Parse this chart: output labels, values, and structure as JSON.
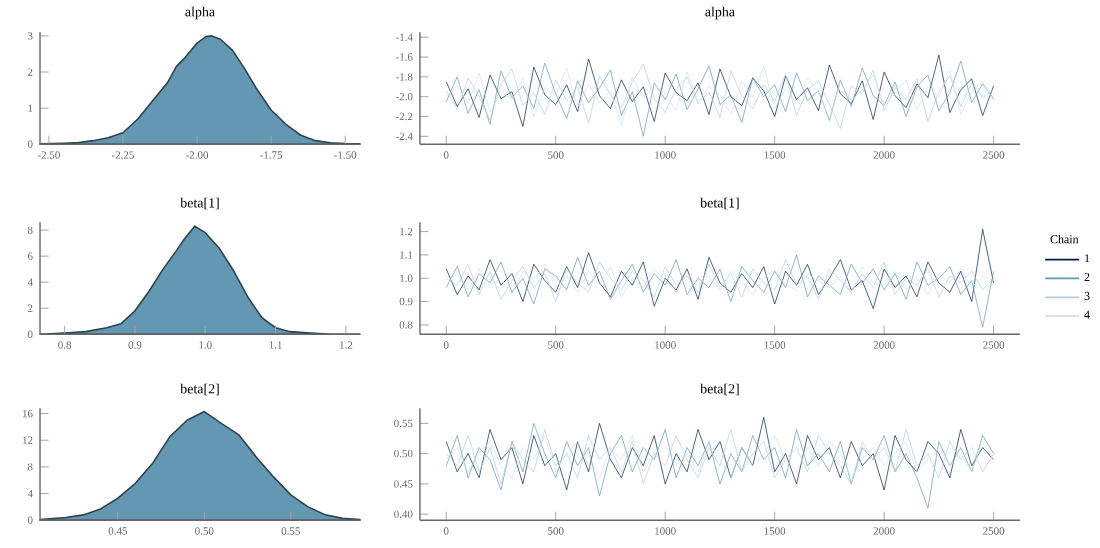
{
  "chart_data": [
    {
      "type": "area",
      "title": "alpha",
      "xlim": [
        -2.53,
        -1.45
      ],
      "ylim": [
        0,
        3.1
      ],
      "xticks": [
        {
          "value": -2.5,
          "label": "-2.50"
        },
        {
          "value": -2.25,
          "label": "-2.25"
        },
        {
          "value": -2.0,
          "label": "-2.00"
        },
        {
          "value": -1.75,
          "label": "-1.75"
        },
        {
          "value": -1.5,
          "label": "-1.50"
        }
      ],
      "yticks": [
        0,
        1,
        2,
        3
      ],
      "x": [
        -2.53,
        -2.45,
        -2.4,
        -2.35,
        -2.3,
        -2.25,
        -2.2,
        -2.15,
        -2.1,
        -2.07,
        -2.04,
        -2.0,
        -1.97,
        -1.95,
        -1.92,
        -1.88,
        -1.84,
        -1.8,
        -1.75,
        -1.7,
        -1.65,
        -1.6,
        -1.55,
        -1.5,
        -1.45
      ],
      "series": [
        {
          "color": "#6497b1",
          "values": [
            0.01,
            0.03,
            0.05,
            0.1,
            0.18,
            0.32,
            0.7,
            1.2,
            1.7,
            2.15,
            2.4,
            2.8,
            2.98,
            3.0,
            2.9,
            2.6,
            2.1,
            1.55,
            0.95,
            0.55,
            0.25,
            0.1,
            0.04,
            0.02,
            0.01
          ]
        }
      ]
    },
    {
      "type": "line",
      "title": "alpha",
      "xlim": [
        -120,
        2620
      ],
      "ylim": [
        -2.48,
        -1.35
      ],
      "xticks": [
        0,
        500,
        1000,
        1500,
        2000,
        2500
      ],
      "yticks": [
        {
          "value": -2.4,
          "label": "-2.4"
        },
        {
          "value": -2.2,
          "label": "-2.2"
        },
        {
          "value": -2.0,
          "label": "-2.0"
        },
        {
          "value": -1.8,
          "label": "-1.8"
        },
        {
          "value": -1.6,
          "label": "-1.6"
        },
        {
          "value": -1.4,
          "label": "-1.4"
        }
      ],
      "x": [
        0,
        50,
        100,
        150,
        200,
        250,
        300,
        350,
        400,
        450,
        500,
        550,
        600,
        650,
        700,
        750,
        800,
        850,
        900,
        950,
        1000,
        1050,
        1100,
        1150,
        1200,
        1250,
        1300,
        1350,
        1400,
        1450,
        1500,
        1550,
        1600,
        1650,
        1700,
        1750,
        1800,
        1850,
        1900,
        1950,
        2000,
        2050,
        2100,
        2150,
        2200,
        2250,
        2300,
        2350,
        2400,
        2450,
        2500
      ],
      "series": [
        {
          "color": "#011f4b",
          "values": [
            -1.85,
            -2.1,
            -1.92,
            -2.21,
            -1.78,
            -2.02,
            -1.95,
            -2.3,
            -1.7,
            -1.98,
            -2.08,
            -1.88,
            -2.15,
            -1.62,
            -1.99,
            -2.12,
            -1.83,
            -2.05,
            -1.9,
            -2.25,
            -1.76,
            -1.96,
            -2.04,
            -1.86,
            -2.18,
            -1.72,
            -2.0,
            -2.09,
            -1.81,
            -1.94,
            -2.2,
            -1.79,
            -2.03,
            -1.91,
            -2.14,
            -1.68,
            -1.97,
            -2.07,
            -1.84,
            -2.23,
            -1.75,
            -1.99,
            -2.11,
            -1.87,
            -2.01,
            -1.58,
            -2.16,
            -1.93,
            -1.82,
            -2.19,
            -1.89
          ]
        },
        {
          "color": "#6497b1",
          "values": [
            -2.05,
            -1.8,
            -2.17,
            -1.93,
            -2.28,
            -1.74,
            -2.01,
            -1.89,
            -2.12,
            -1.66,
            -1.97,
            -2.22,
            -1.84,
            -2.06,
            -1.91,
            -1.73,
            -2.19,
            -1.95,
            -2.4,
            -1.86,
            -2.03,
            -1.77,
            -2.13,
            -1.92,
            -1.69,
            -2.08,
            -1.98,
            -2.26,
            -1.81,
            -2.0,
            -1.88,
            -2.15,
            -1.76,
            -2.04,
            -1.94,
            -2.24,
            -1.83,
            -2.1,
            -1.71,
            -1.99,
            -2.09,
            -1.85,
            -2.2,
            -1.9,
            -1.78,
            -2.14,
            -1.96,
            -1.64,
            -2.06,
            -1.87,
            -2.02
          ]
        },
        {
          "color": "#b3cde0",
          "values": [
            -1.94,
            -2.13,
            -1.81,
            -2.0,
            -2.24,
            -1.87,
            -1.72,
            -2.09,
            -1.96,
            -2.18,
            -1.83,
            -2.04,
            -1.9,
            -2.27,
            -1.79,
            -1.98,
            -2.11,
            -1.85,
            -1.67,
            -2.02,
            -2.16,
            -1.92,
            -1.8,
            -2.07,
            -1.95,
            -2.21,
            -1.74,
            -1.99,
            -2.12,
            -1.88,
            -2.05,
            -1.77,
            -2.19,
            -1.93,
            -1.84,
            -2.08,
            -2.32,
            -1.89,
            -1.97,
            -1.73,
            -2.14,
            -1.91,
            -2.03,
            -1.82,
            -2.25,
            -1.95,
            -1.79,
            -2.1,
            -1.86,
            -2.01,
            -1.93
          ]
        },
        {
          "color": "#d1e1ec",
          "values": [
            -2.0,
            -1.89,
            -2.07,
            -1.76,
            -2.15,
            -1.95,
            -2.03,
            -1.82,
            -2.2,
            -1.91,
            -1.99,
            -1.71,
            -2.11,
            -1.87,
            -2.06,
            -1.94,
            -2.29,
            -1.8,
            -2.02,
            -1.88,
            -1.97,
            -2.14,
            -1.75,
            -2.05,
            -1.9,
            -1.98,
            -2.17,
            -1.84,
            -2.01,
            -1.69,
            -2.12,
            -1.92,
            -2.06,
            -1.81,
            -1.96,
            -2.22,
            -1.86,
            -2.04,
            -1.93,
            -1.78,
            -2.08,
            -1.97,
            -1.83,
            -2.13,
            -1.9,
            -2.0,
            -1.74,
            -2.18,
            -1.95,
            -1.85,
            -2.04
          ]
        }
      ]
    },
    {
      "type": "area",
      "title": "beta[1]",
      "xlim": [
        0.765,
        1.22
      ],
      "ylim": [
        0,
        8.6
      ],
      "xticks": [
        {
          "value": 0.8,
          "label": "0.8"
        },
        {
          "value": 0.9,
          "label": "0.9"
        },
        {
          "value": 1.0,
          "label": "1.0"
        },
        {
          "value": 1.1,
          "label": "1.1"
        },
        {
          "value": 1.2,
          "label": "1.2"
        }
      ],
      "yticks": [
        0,
        2,
        4,
        6,
        8
      ],
      "x": [
        0.765,
        0.8,
        0.83,
        0.86,
        0.88,
        0.9,
        0.92,
        0.94,
        0.96,
        0.97,
        0.985,
        1.0,
        1.02,
        1.04,
        1.06,
        1.08,
        1.1,
        1.12,
        1.15,
        1.18,
        1.22
      ],
      "series": [
        {
          "color": "#6497b1",
          "values": [
            0.0,
            0.1,
            0.2,
            0.5,
            0.8,
            1.8,
            3.3,
            5.0,
            6.5,
            7.3,
            8.3,
            7.8,
            6.6,
            4.9,
            2.9,
            1.3,
            0.5,
            0.2,
            0.1,
            0.0,
            0.0
          ]
        }
      ]
    },
    {
      "type": "line",
      "title": "beta[1]",
      "legend": "right",
      "legend_title": "Chain",
      "xlim": [
        -120,
        2620
      ],
      "ylim": [
        0.76,
        1.24
      ],
      "xticks": [
        0,
        500,
        1000,
        1500,
        2000,
        2500
      ],
      "yticks": [
        {
          "value": 0.8,
          "label": "0.8"
        },
        {
          "value": 0.9,
          "label": "0.9"
        },
        {
          "value": 1.0,
          "label": "1.0"
        },
        {
          "value": 1.1,
          "label": "1.1"
        },
        {
          "value": 1.2,
          "label": "1.2"
        }
      ],
      "x": [
        0,
        50,
        100,
        150,
        200,
        250,
        300,
        350,
        400,
        450,
        500,
        550,
        600,
        650,
        700,
        750,
        800,
        850,
        900,
        950,
        1000,
        1050,
        1100,
        1150,
        1200,
        1250,
        1300,
        1350,
        1400,
        1450,
        1500,
        1550,
        1600,
        1650,
        1700,
        1750,
        1800,
        1850,
        1900,
        1950,
        2000,
        2050,
        2100,
        2150,
        2200,
        2250,
        2300,
        2350,
        2400,
        2450,
        2500
      ],
      "series": [
        {
          "name": "1",
          "color": "#011f4b",
          "values": [
            1.04,
            0.93,
            1.01,
            0.95,
            1.08,
            0.97,
            1.02,
            0.9,
            1.06,
            0.99,
            0.94,
            1.05,
            0.96,
            1.11,
            0.98,
            0.92,
            1.03,
            0.97,
            1.07,
            0.88,
            1.0,
            0.95,
            1.04,
            0.91,
            1.09,
            0.98,
            0.94,
            1.02,
            0.96,
            1.05,
            0.89,
            1.03,
            0.97,
            1.06,
            0.93,
            1.0,
            1.08,
            0.95,
            0.99,
            0.87,
            1.04,
            0.96,
            1.01,
            0.92,
            1.07,
            0.98,
            0.94,
            1.03,
            0.9,
            1.21,
            0.98
          ]
        },
        {
          "name": "2",
          "color": "#6497b1",
          "values": [
            0.96,
            1.05,
            0.92,
            1.02,
            0.98,
            1.07,
            0.94,
            1.0,
            0.89,
            1.04,
            1.01,
            0.95,
            1.09,
            0.97,
            1.03,
            0.91,
            0.99,
            1.06,
            0.94,
            1.02,
            0.97,
            1.08,
            0.93,
            1.0,
            0.96,
            1.04,
            0.9,
            1.05,
            0.99,
            0.94,
            1.03,
            0.96,
            1.1,
            0.92,
            1.01,
            0.97,
            0.93,
            1.06,
            0.98,
            1.04,
            0.95,
            1.02,
            0.91,
            1.07,
            0.97,
            1.0,
            1.05,
            0.93,
            0.99,
            0.79,
            1.03
          ]
        },
        {
          "name": "3",
          "color": "#b3cde0",
          "values": [
            1.0,
            0.97,
            1.06,
            0.93,
            1.03,
            0.91,
            0.99,
            1.05,
            0.96,
            1.02,
            0.9,
            1.04,
            0.98,
            0.94,
            1.07,
            1.0,
            0.95,
            1.03,
            0.99,
            0.92,
            1.05,
            0.97,
            1.01,
            0.94,
            1.06,
            0.96,
            1.02,
            0.92,
            1.04,
            0.98,
            0.95,
            1.08,
            0.97,
            1.01,
            0.91,
            1.04,
            0.99,
            0.94,
            1.02,
            0.96,
            1.07,
            0.93,
            1.0,
            0.97,
            1.04,
            0.92,
            1.01,
            0.98,
            1.03,
            0.95,
            1.0
          ]
        },
        {
          "name": "4",
          "color": "#d1e1ec",
          "values": [
            0.98,
            1.02,
            0.95,
            1.04,
            0.97,
            1.0,
            0.93,
            1.03,
            0.99,
            1.06,
            0.96,
            1.01,
            0.94,
            1.03,
            0.97,
            1.05,
            0.92,
            1.0,
            0.96,
            1.04,
            0.99,
            0.94,
            1.02,
            0.97,
            1.01,
            0.95,
            1.03,
            0.98,
            0.93,
            1.0,
            1.04,
            0.97,
            0.95,
            1.02,
            0.99,
            0.96,
            1.01,
            0.94,
            1.05,
            0.98,
            0.97,
            1.03,
            0.95,
            1.0,
            0.93,
            1.02,
            0.98,
            1.04,
            0.96,
            1.01,
            0.99
          ]
        }
      ]
    },
    {
      "type": "area",
      "title": "beta[2]",
      "xlim": [
        0.405,
        0.59
      ],
      "ylim": [
        0,
        16.8
      ],
      "xticks": [
        {
          "value": 0.45,
          "label": "0.45"
        },
        {
          "value": 0.5,
          "label": "0.50"
        },
        {
          "value": 0.55,
          "label": "0.55"
        }
      ],
      "yticks": [
        0,
        4,
        8,
        12,
        16
      ],
      "x": [
        0.405,
        0.42,
        0.43,
        0.44,
        0.45,
        0.46,
        0.47,
        0.48,
        0.49,
        0.5,
        0.51,
        0.52,
        0.53,
        0.54,
        0.55,
        0.56,
        0.57,
        0.58,
        0.59
      ],
      "series": [
        {
          "color": "#6497b1",
          "values": [
            0.1,
            0.4,
            0.8,
            1.7,
            3.3,
            5.5,
            8.5,
            12.5,
            15.0,
            16.3,
            14.5,
            12.8,
            9.5,
            6.5,
            3.8,
            2.0,
            0.8,
            0.3,
            0.1
          ]
        }
      ]
    },
    {
      "type": "line",
      "title": "beta[2]",
      "xlim": [
        -120,
        2620
      ],
      "ylim": [
        0.39,
        0.575
      ],
      "xticks": [
        0,
        500,
        1000,
        1500,
        2000,
        2500
      ],
      "yticks": [
        {
          "value": 0.4,
          "label": "0.40"
        },
        {
          "value": 0.45,
          "label": "0.45"
        },
        {
          "value": 0.5,
          "label": "0.50"
        },
        {
          "value": 0.55,
          "label": "0.55"
        }
      ],
      "x": [
        0,
        50,
        100,
        150,
        200,
        250,
        300,
        350,
        400,
        450,
        500,
        550,
        600,
        650,
        700,
        750,
        800,
        850,
        900,
        950,
        1000,
        1050,
        1100,
        1150,
        1200,
        1250,
        1300,
        1350,
        1400,
        1450,
        1500,
        1550,
        1600,
        1650,
        1700,
        1750,
        1800,
        1850,
        1900,
        1950,
        2000,
        2050,
        2100,
        2150,
        2200,
        2250,
        2300,
        2350,
        2400,
        2450,
        2500
      ],
      "series": [
        {
          "color": "#011f4b",
          "values": [
            0.52,
            0.47,
            0.5,
            0.46,
            0.54,
            0.49,
            0.51,
            0.45,
            0.53,
            0.48,
            0.5,
            0.44,
            0.52,
            0.47,
            0.55,
            0.49,
            0.46,
            0.51,
            0.48,
            0.53,
            0.45,
            0.5,
            0.47,
            0.54,
            0.49,
            0.52,
            0.46,
            0.51,
            0.48,
            0.56,
            0.47,
            0.5,
            0.45,
            0.53,
            0.49,
            0.51,
            0.46,
            0.52,
            0.48,
            0.5,
            0.44,
            0.53,
            0.49,
            0.47,
            0.52,
            0.5,
            0.46,
            0.54,
            0.48,
            0.51,
            0.49
          ]
        },
        {
          "color": "#6497b1",
          "values": [
            0.48,
            0.53,
            0.46,
            0.51,
            0.49,
            0.44,
            0.52,
            0.47,
            0.55,
            0.5,
            0.46,
            0.52,
            0.48,
            0.51,
            0.43,
            0.5,
            0.53,
            0.47,
            0.51,
            0.49,
            0.54,
            0.46,
            0.51,
            0.48,
            0.52,
            0.45,
            0.5,
            0.47,
            0.53,
            0.49,
            0.51,
            0.46,
            0.54,
            0.48,
            0.5,
            0.47,
            0.52,
            0.45,
            0.51,
            0.49,
            0.53,
            0.47,
            0.5,
            0.46,
            0.41,
            0.52,
            0.48,
            0.51,
            0.47,
            0.53,
            0.5
          ]
        },
        {
          "color": "#b3cde0",
          "values": [
            0.5,
            0.48,
            0.53,
            0.47,
            0.51,
            0.45,
            0.52,
            0.49,
            0.47,
            0.54,
            0.48,
            0.5,
            0.46,
            0.53,
            0.49,
            0.51,
            0.47,
            0.52,
            0.45,
            0.5,
            0.48,
            0.53,
            0.49,
            0.46,
            0.51,
            0.48,
            0.54,
            0.47,
            0.5,
            0.52,
            0.46,
            0.49,
            0.51,
            0.47,
            0.53,
            0.5,
            0.48,
            0.45,
            0.52,
            0.49,
            0.51,
            0.47,
            0.54,
            0.48,
            0.5,
            0.46,
            0.52,
            0.49,
            0.51,
            0.47,
            0.5
          ]
        },
        {
          "color": "#d1e1ec",
          "values": [
            0.49,
            0.51,
            0.47,
            0.5,
            0.52,
            0.48,
            0.46,
            0.51,
            0.49,
            0.53,
            0.47,
            0.5,
            0.52,
            0.48,
            0.46,
            0.51,
            0.49,
            0.53,
            0.47,
            0.5,
            0.51,
            0.48,
            0.5,
            0.47,
            0.52,
            0.49,
            0.46,
            0.51,
            0.48,
            0.5,
            0.53,
            0.49,
            0.47,
            0.51,
            0.48,
            0.52,
            0.5,
            0.46,
            0.49,
            0.51,
            0.48,
            0.5,
            0.52,
            0.47,
            0.49,
            0.51,
            0.48,
            0.5,
            0.47,
            0.52,
            0.49
          ]
        }
      ]
    }
  ]
}
